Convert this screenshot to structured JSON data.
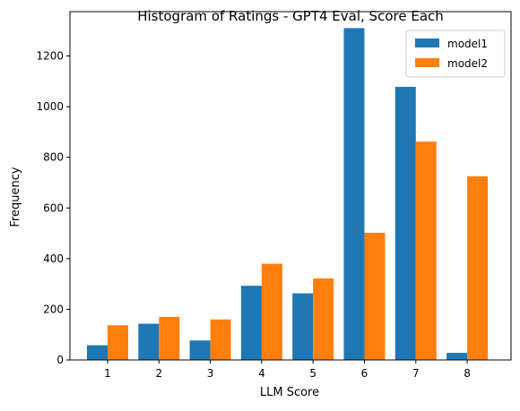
{
  "chart_data": {
    "type": "bar",
    "title": "Histogram of Ratings - GPT4 Eval, Score Each",
    "xlabel": "LLM Score",
    "ylabel": "Frequency",
    "categories": [
      "1",
      "2",
      "3",
      "4",
      "5",
      "6",
      "7",
      "8"
    ],
    "yticks": [
      0,
      200,
      400,
      600,
      800,
      1000,
      1200
    ],
    "ylim": [
      0,
      1375
    ],
    "grid": false,
    "legend_position": "top-right",
    "series": [
      {
        "name": "model1",
        "color": "#1f77b4",
        "values": [
          58,
          143,
          77,
          293,
          263,
          1310,
          1078,
          28
        ]
      },
      {
        "name": "model2",
        "color": "#ff7f0e",
        "values": [
          137,
          170,
          160,
          380,
          322,
          502,
          862,
          725
        ]
      }
    ]
  }
}
